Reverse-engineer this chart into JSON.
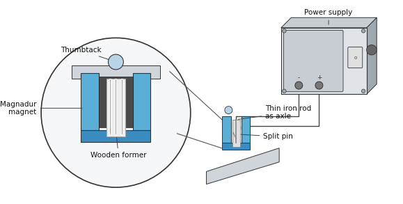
{
  "bg_color": "#ffffff",
  "labels": {
    "power_supply": "Power supply",
    "wooden_former": "Wooden former",
    "magnadur_magnet": "Magnadur\nmagnet",
    "thumbtack": "Thumbtack",
    "split_pin": "Split pin",
    "thin_iron_rod": "Thin iron rod\nas axle"
  },
  "colors": {
    "blue_magnet": "#5baed6",
    "blue_magnet_dark": "#3a8bbf",
    "blue_magnet_light": "#a8d4ee",
    "gray_box": "#c8cdd4",
    "gray_box_dark": "#a0a8b0",
    "gray_box_light": "#e0e4e8",
    "thumbtack_blue": "#b8d4e8",
    "base_gray": "#d0d5db",
    "outline": "#333333",
    "wire_color": "#444444",
    "dark_gap": "#4a4a4a",
    "white": "#ffffff",
    "light_bg": "#f5f7f8"
  }
}
